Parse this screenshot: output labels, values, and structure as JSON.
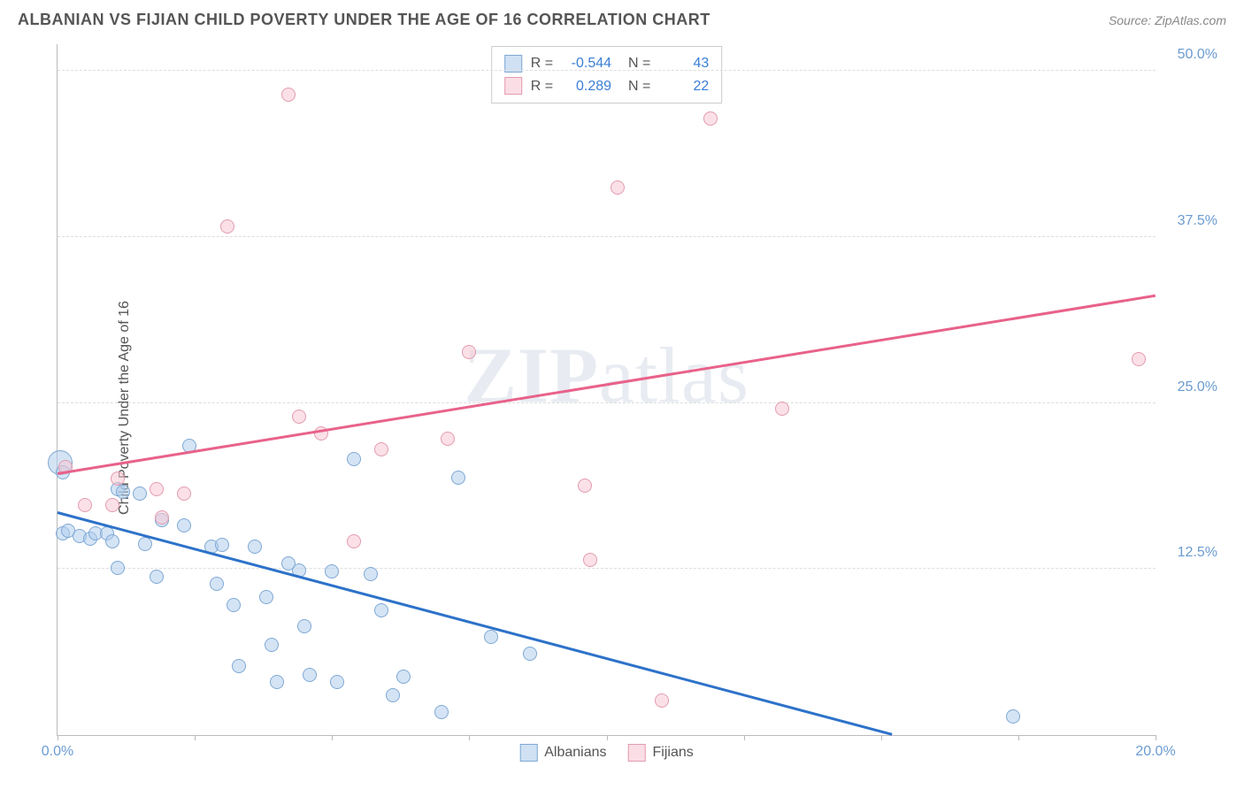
{
  "header": {
    "title": "ALBANIAN VS FIJIAN CHILD POVERTY UNDER THE AGE OF 16 CORRELATION CHART",
    "source": "Source: ZipAtlas.com"
  },
  "chart": {
    "type": "scatter",
    "ylabel": "Child Poverty Under the Age of 16",
    "xlim": [
      0,
      20
    ],
    "ylim": [
      0,
      52
    ],
    "xtick_positions": [
      0,
      2.5,
      5,
      7.5,
      10,
      12.5,
      15,
      17.5,
      20
    ],
    "xtick_labels": {
      "0": "0.0%",
      "20": "20.0%"
    },
    "ytick_positions": [
      12.5,
      25.0,
      37.5,
      50.0
    ],
    "ytick_labels": [
      "12.5%",
      "25.0%",
      "37.5%",
      "50.0%"
    ],
    "grid_color": "#dddddd",
    "background_color": "#ffffff",
    "series": [
      {
        "name": "Albanians",
        "key": "albanians",
        "color_fill": "rgba(176,205,236,0.55)",
        "color_stroke": "#7fa8d4",
        "trend_color": "#2d72c9",
        "marker_size": 16,
        "points": [
          {
            "x": 0.05,
            "y": 20.5,
            "size": 28
          },
          {
            "x": 0.1,
            "y": 19.8
          },
          {
            "x": 0.1,
            "y": 15.2
          },
          {
            "x": 0.2,
            "y": 15.4
          },
          {
            "x": 0.4,
            "y": 15.0
          },
          {
            "x": 0.6,
            "y": 14.8
          },
          {
            "x": 0.7,
            "y": 15.2
          },
          {
            "x": 0.9,
            "y": 15.2
          },
          {
            "x": 1.0,
            "y": 14.6
          },
          {
            "x": 1.1,
            "y": 18.5
          },
          {
            "x": 1.2,
            "y": 18.3
          },
          {
            "x": 1.1,
            "y": 12.6
          },
          {
            "x": 1.5,
            "y": 18.2
          },
          {
            "x": 1.6,
            "y": 14.4
          },
          {
            "x": 1.8,
            "y": 11.9
          },
          {
            "x": 1.9,
            "y": 16.2
          },
          {
            "x": 2.3,
            "y": 15.8
          },
          {
            "x": 2.4,
            "y": 21.8
          },
          {
            "x": 2.8,
            "y": 14.2
          },
          {
            "x": 2.9,
            "y": 11.4
          },
          {
            "x": 3.0,
            "y": 14.3
          },
          {
            "x": 3.2,
            "y": 9.8
          },
          {
            "x": 3.3,
            "y": 5.2
          },
          {
            "x": 3.6,
            "y": 14.2
          },
          {
            "x": 3.8,
            "y": 10.4
          },
          {
            "x": 3.9,
            "y": 6.8
          },
          {
            "x": 4.0,
            "y": 4.0
          },
          {
            "x": 4.4,
            "y": 12.4
          },
          {
            "x": 4.5,
            "y": 8.2
          },
          {
            "x": 4.6,
            "y": 4.5
          },
          {
            "x": 5.0,
            "y": 12.3
          },
          {
            "x": 5.1,
            "y": 4.0
          },
          {
            "x": 5.4,
            "y": 20.8
          },
          {
            "x": 5.7,
            "y": 12.1
          },
          {
            "x": 5.9,
            "y": 9.4
          },
          {
            "x": 6.1,
            "y": 3.0
          },
          {
            "x": 6.3,
            "y": 4.4
          },
          {
            "x": 7.0,
            "y": 1.7
          },
          {
            "x": 7.3,
            "y": 19.4
          },
          {
            "x": 7.9,
            "y": 7.4
          },
          {
            "x": 8.6,
            "y": 6.1
          },
          {
            "x": 17.4,
            "y": 1.4
          },
          {
            "x": 4.2,
            "y": 12.9
          }
        ],
        "trend": {
          "x1": 0,
          "y1": 16.7,
          "x2": 15.2,
          "y2": 0
        }
      },
      {
        "name": "Fijians",
        "key": "fijians",
        "color_fill": "rgba(248,200,212,0.55)",
        "color_stroke": "#e39bb0",
        "trend_color": "#e8628a",
        "marker_size": 16,
        "points": [
          {
            "x": 0.15,
            "y": 20.2
          },
          {
            "x": 0.5,
            "y": 17.3
          },
          {
            "x": 1.0,
            "y": 17.3
          },
          {
            "x": 1.1,
            "y": 19.3
          },
          {
            "x": 1.8,
            "y": 18.5
          },
          {
            "x": 1.9,
            "y": 16.4
          },
          {
            "x": 2.3,
            "y": 18.2
          },
          {
            "x": 3.1,
            "y": 38.3
          },
          {
            "x": 4.2,
            "y": 48.2
          },
          {
            "x": 4.4,
            "y": 24.0
          },
          {
            "x": 4.8,
            "y": 22.7
          },
          {
            "x": 5.4,
            "y": 14.6
          },
          {
            "x": 5.9,
            "y": 21.5
          },
          {
            "x": 7.1,
            "y": 22.3
          },
          {
            "x": 7.5,
            "y": 28.8
          },
          {
            "x": 9.6,
            "y": 18.8
          },
          {
            "x": 9.7,
            "y": 13.2
          },
          {
            "x": 10.2,
            "y": 41.2
          },
          {
            "x": 11.0,
            "y": 2.6
          },
          {
            "x": 11.9,
            "y": 46.4
          },
          {
            "x": 13.2,
            "y": 24.6
          },
          {
            "x": 19.7,
            "y": 28.3
          }
        ],
        "trend": {
          "x1": 0,
          "y1": 19.6,
          "x2": 20,
          "y2": 33.0
        }
      }
    ],
    "stats": [
      {
        "series": "albanians",
        "R": "-0.544",
        "N": "43"
      },
      {
        "series": "fijians",
        "R": "0.289",
        "N": "22"
      }
    ],
    "legend": [
      {
        "swatch": "blue",
        "label": "Albanians"
      },
      {
        "swatch": "pink",
        "label": "Fijians"
      }
    ],
    "watermark": {
      "bold": "ZIP",
      "rest": "atlas"
    }
  }
}
